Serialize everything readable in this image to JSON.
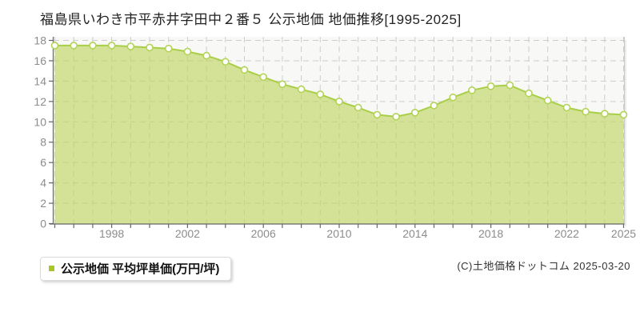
{
  "title": "福島県いわき市平赤井字田中２番５ 公示地価 地価推移[1995-2025]",
  "legend": {
    "label": "公示地価 平均坪単価(万円/坪)",
    "marker_color": "#a5c828"
  },
  "footer": {
    "copyright": "(C)土地価格ドットコム 2025-03-20"
  },
  "colors": {
    "area_fill": "rgba(188,212,94,0.63)",
    "line": "#a9ce47",
    "point_fill": "#ffffff",
    "point_stroke": "#b3d356",
    "grid": "#cdcdcd",
    "axis": "#666666",
    "tick_label": "#8c8c8c",
    "plot_bg": "#f8f8f6",
    "plot_right_border": "#c9c9c9"
  },
  "chart_data": {
    "type": "area",
    "title": "福島県いわき市平赤井字田中２番５ 公示地価 地価推移[1995-2025]",
    "series_name": "公示地価 平均坪単価(万円/坪)",
    "ylabel": "平均坪単価(万円/坪)",
    "xlabel": "",
    "x": [
      1995,
      1996,
      1997,
      1998,
      1999,
      2000,
      2001,
      2002,
      2003,
      2004,
      2005,
      2006,
      2007,
      2008,
      2009,
      2010,
      2011,
      2012,
      2013,
      2014,
      2015,
      2016,
      2017,
      2018,
      2019,
      2020,
      2021,
      2022,
      2023,
      2024,
      2025
    ],
    "values": [
      17.5,
      17.5,
      17.5,
      17.5,
      17.4,
      17.3,
      17.2,
      16.9,
      16.5,
      15.9,
      15.1,
      14.4,
      13.7,
      13.2,
      12.7,
      12.0,
      11.4,
      10.7,
      10.5,
      10.9,
      11.6,
      12.4,
      13.1,
      13.5,
      13.6,
      12.8,
      12.1,
      11.4,
      11.0,
      10.8,
      10.7
    ],
    "ylim": [
      0,
      18
    ],
    "yticks": [
      0,
      2,
      4,
      6,
      8,
      10,
      12,
      14,
      16,
      18
    ],
    "xticks": [
      1998,
      2002,
      2006,
      2010,
      2014,
      2018,
      2022,
      2025
    ],
    "grid": true,
    "legend_position": "bottom-left"
  }
}
